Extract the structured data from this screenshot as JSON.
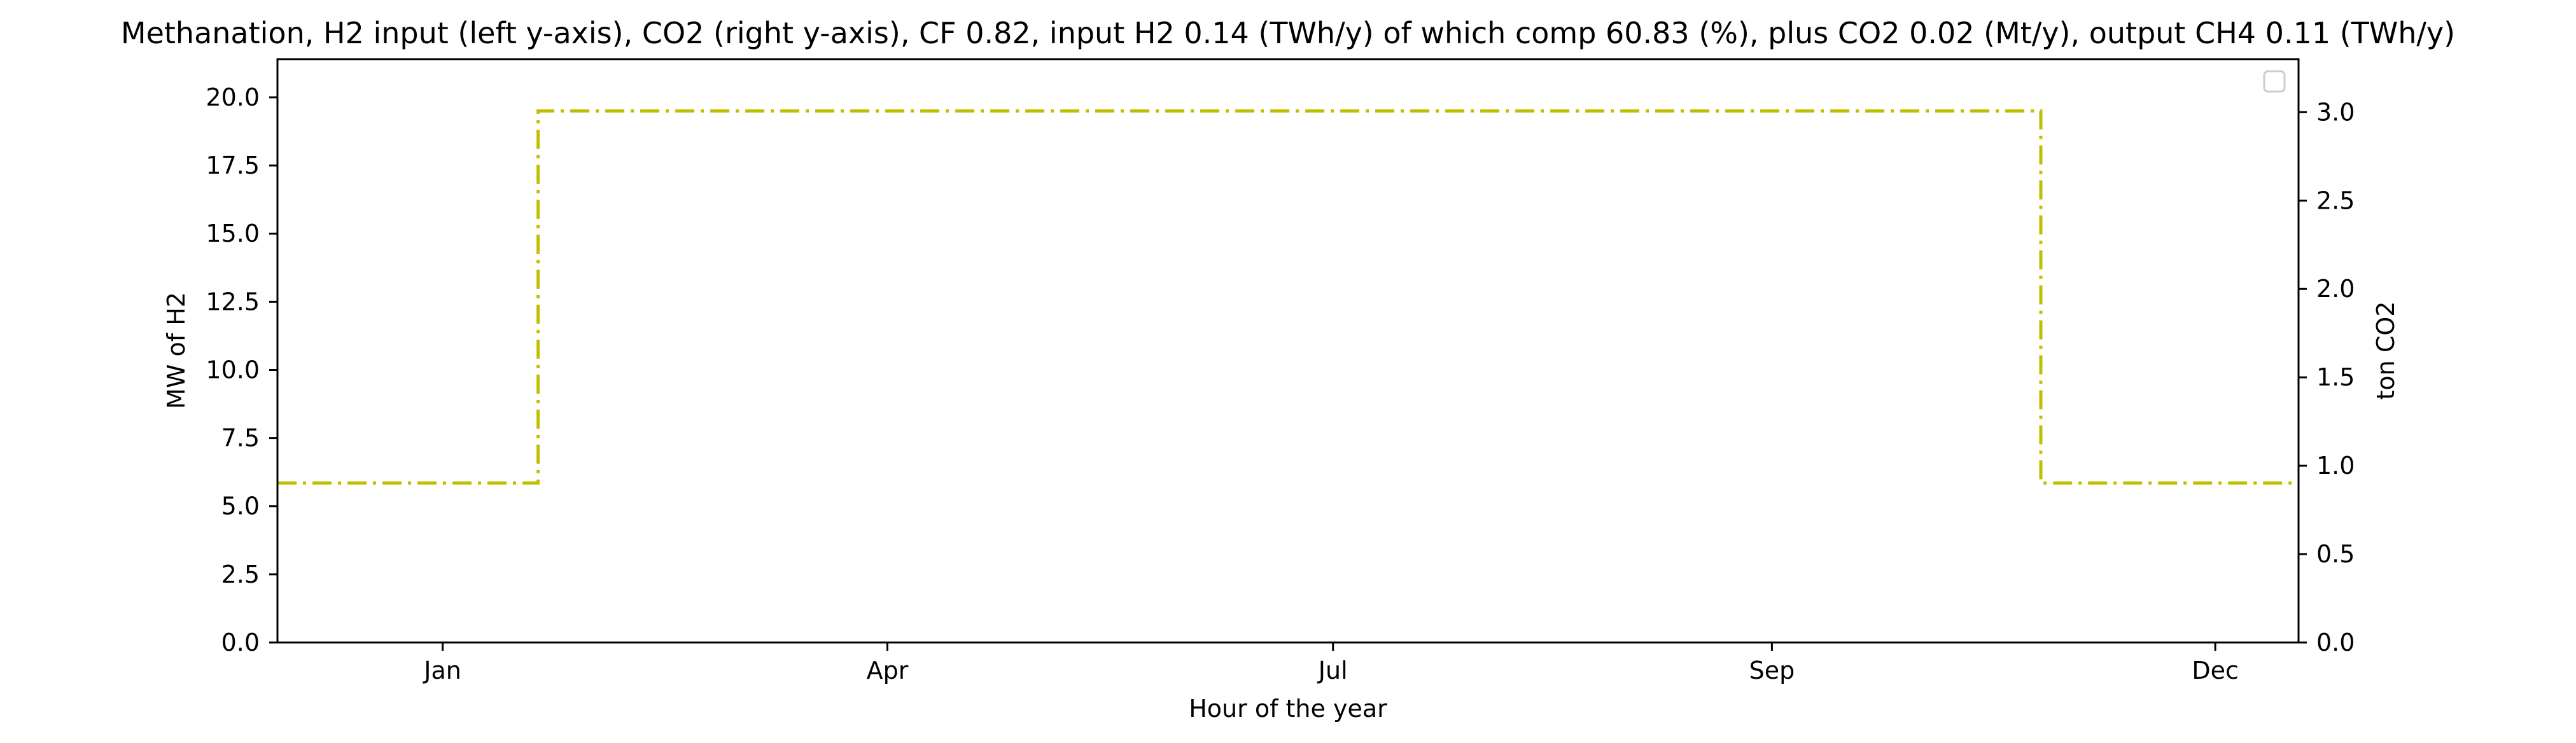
{
  "chart_data": {
    "type": "line",
    "title": "Methanation, H2 input (left y-axis), CO2 (right y-axis), CF 0.82, input H2 0.14 (TWh/y) of which comp 60.83 (%), plus CO2 0.02 (Mt/y), output CH4 0.11 (TWh/y)",
    "xlabel": "Hour of the year",
    "ylabel_left": "MW of H2",
    "ylabel_right": "ton CO2",
    "x_unit": "hour of year",
    "xlim": [
      -480,
      8500
    ],
    "x_ticks": [
      {
        "label": "Jan",
        "value": 254
      },
      {
        "label": "Apr",
        "value": 2230
      },
      {
        "label": "Jul",
        "value": 4210
      },
      {
        "label": "Sep",
        "value": 6160
      },
      {
        "label": "Dec",
        "value": 8130
      }
    ],
    "ylim_left": [
      0,
      21.4
    ],
    "ylim_right": [
      0,
      3.3
    ],
    "y_left_ticks": [
      "0.0",
      "2.5",
      "5.0",
      "7.5",
      "10.0",
      "12.5",
      "15.0",
      "17.5",
      "20.0"
    ],
    "y_right_ticks": [
      "0.0",
      "0.5",
      "1.0",
      "1.5",
      "2.0",
      "2.5",
      "3.0"
    ],
    "grid": false,
    "legend": {
      "placement": "top-right",
      "entries": []
    },
    "series": [
      {
        "axis": "left",
        "color": "#bfbf00",
        "style": "dashdot",
        "x": [
          -480,
          678,
          678,
          7355,
          7355,
          8500
        ],
        "y": [
          5.85,
          5.85,
          19.5,
          19.5,
          5.85,
          5.85
        ]
      }
    ]
  }
}
